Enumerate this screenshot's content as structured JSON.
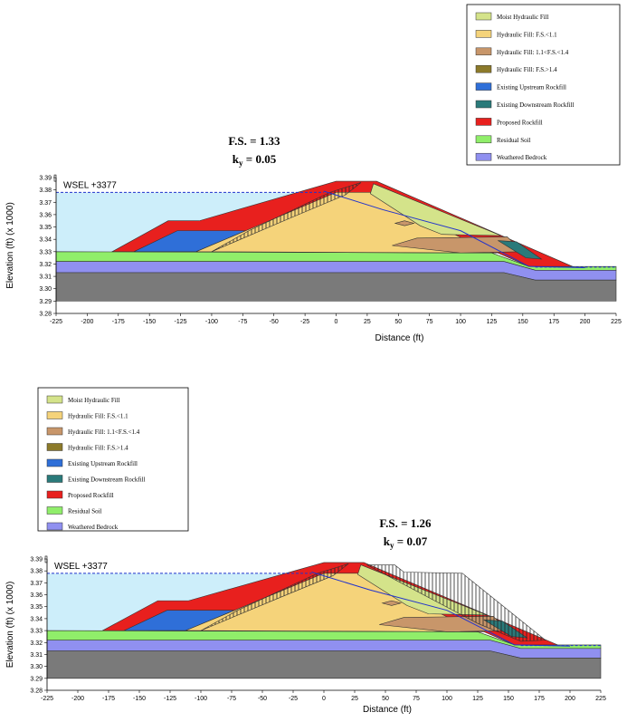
{
  "panels": [
    {
      "legend": [
        "Moist Hydraulic Fill",
        "Hydraulic Fill: F.S.<1.1",
        "Hydraulic Fill: 1.1<F.S.<1.4",
        "Hydraulic Fill: F.S.>1.4",
        "Existing Upstream Rockfill",
        "Existing Downstream Rockfill",
        "Proposed Rockfill",
        "Residual Soil",
        "Weathered Bedrock"
      ],
      "fs": "F.S. = 1.33",
      "ky_k": "k",
      "ky_sub": "y",
      "ky_value": " = 0.05",
      "wsel": "WSEL +3377",
      "y_axis_title": "Elevation (ft) (x 1000)",
      "x_axis_title": "Distance (ft)",
      "yticks": [
        "3.39",
        "3.38",
        "3.37",
        "3.36",
        "3.35",
        "3.34",
        "3.33",
        "3.32",
        "3.31",
        "3.30",
        "3.29",
        "3.28"
      ],
      "xticks": [
        "-225",
        "-200",
        "-175",
        "-150",
        "-125",
        "-100",
        "-75",
        "-50",
        "-25",
        "0",
        "25",
        "50",
        "75",
        "100",
        "125",
        "150",
        "175",
        "200",
        "225"
      ]
    },
    {
      "legend": [
        "Moist Hydraulic Fill",
        "Hydraulic Fill: F.S.<1.1",
        "Hydraulic Fill: 1.1<F.S.<1.4",
        "Hydraulic Fill: F.S.>1.4",
        "Existing Upstream Rockfill",
        "Existing Downstream Rockfill",
        "Proposed Rockfill",
        "Residual Soil",
        "Weathered Bedrock"
      ],
      "fs": "F.S. = 1.26",
      "ky_k": "k",
      "ky_sub": "y",
      "ky_value": " = 0.07",
      "wsel": "WSEL +3377",
      "y_axis_title": "Elevation (ft) (x 1000)",
      "x_axis_title": "Distance (ft)",
      "yticks": [
        "3.39",
        "3.38",
        "3.37",
        "3.36",
        "3.35",
        "3.34",
        "3.33",
        "3.32",
        "3.31",
        "3.30",
        "3.29",
        "3.28"
      ],
      "xticks": [
        "-225",
        "-200",
        "-175",
        "-150",
        "-125",
        "-100",
        "-75",
        "-50",
        "-25",
        "0",
        "25",
        "50",
        "75",
        "100",
        "125",
        "150",
        "175",
        "200",
        "225"
      ]
    }
  ]
}
